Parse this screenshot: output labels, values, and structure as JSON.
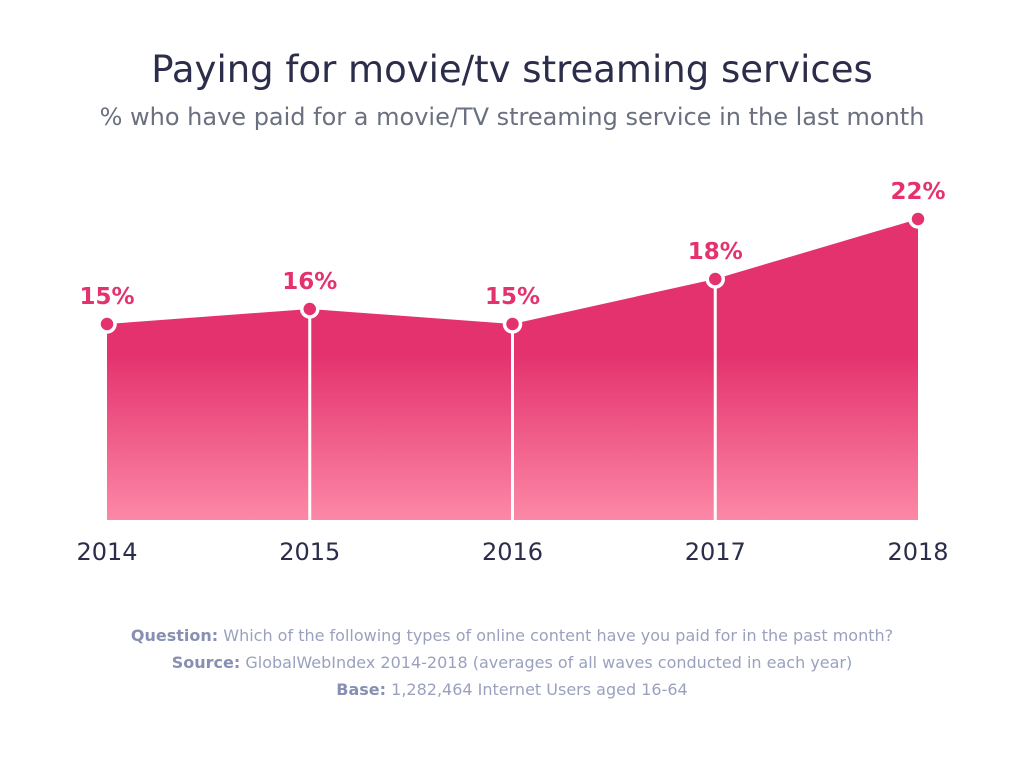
{
  "chart_data": {
    "type": "area",
    "title": "Paying for movie/tv streaming services",
    "subtitle": "% who have paid for a movie/TV streaming service in the last month",
    "categories": [
      "2014",
      "2015",
      "2016",
      "2017",
      "2018"
    ],
    "series": [
      {
        "values": [
          15,
          16,
          15,
          18,
          22
        ],
        "labels": [
          "15%",
          "16%",
          "15%",
          "18%",
          "22%"
        ]
      }
    ],
    "ylim": [
      0,
      25
    ],
    "grid": false,
    "legend": "none",
    "colors": {
      "area_top": "#e4326e",
      "area_bottom": "#fc88a6",
      "label": "#e4326e"
    }
  },
  "footnotes": {
    "question_label": "Question:",
    "question_text": "Which of the following types of online content have you paid for in the past month?",
    "source_label": "Source:",
    "source_text": "GlobalWebIndex 2014-2018 (averages of all waves conducted in each year)",
    "base_label": "Base:",
    "base_text": "1,282,464 Internet Users aged 16-64"
  }
}
